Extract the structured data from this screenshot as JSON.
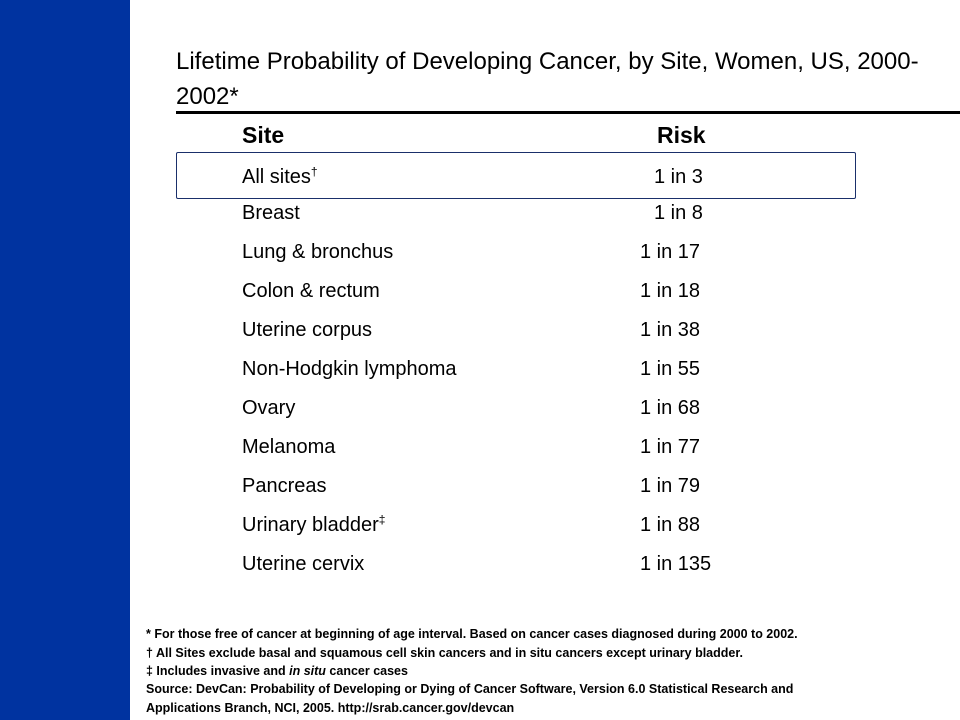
{
  "colors": {
    "sidebar": "#0033a0",
    "rule": "#000000"
  },
  "title": "Lifetime Probability of Developing Cancer, by Site, Women, US, 2000-2002*",
  "table": {
    "headers": {
      "site": "Site",
      "risk": "Risk"
    },
    "rows": [
      {
        "site": "All sites",
        "mark": "†",
        "risk": "1 in 3"
      },
      {
        "site": "Breast",
        "mark": "",
        "risk": "1 in 8"
      },
      {
        "site": "Lung & bronchus",
        "mark": "",
        "risk": "1 in 17"
      },
      {
        "site": "Colon & rectum",
        "mark": "",
        "risk": "1 in 18"
      },
      {
        "site": "Uterine corpus",
        "mark": "",
        "risk": "1 in 38"
      },
      {
        "site": "Non-Hodgkin lymphoma",
        "mark": "",
        "risk": "1 in 55"
      },
      {
        "site": "Ovary",
        "mark": "",
        "risk": "1 in 68"
      },
      {
        "site": "Melanoma",
        "mark": "",
        "risk": "1 in 77"
      },
      {
        "site": "Pancreas",
        "mark": "",
        "risk": "1 in 79"
      },
      {
        "site": "Urinary bladder",
        "mark": "‡",
        "risk": "1 in 88"
      },
      {
        "site": "Uterine cervix",
        "mark": "",
        "risk": "1 in 135"
      }
    ]
  },
  "footnotes": {
    "asterisk": "* For those free of cancer at beginning of age interval. Based on cancer cases diagnosed during 2000 to 2002.",
    "dagger": "† All Sites exclude basal and squamous cell skin cancers and in situ cancers except urinary bladder.",
    "double_dagger_pre": "‡ Includes invasive and ",
    "double_dagger_em": "in situ",
    "double_dagger_post": " cancer cases",
    "source_line1": "Source: DevCan: Probability of Developing or Dying of Cancer Software, Version 6.0 Statistical Research and",
    "source_line2": "Applications Branch, NCI, 2005. http://srab.cancer.gov/devcan"
  }
}
